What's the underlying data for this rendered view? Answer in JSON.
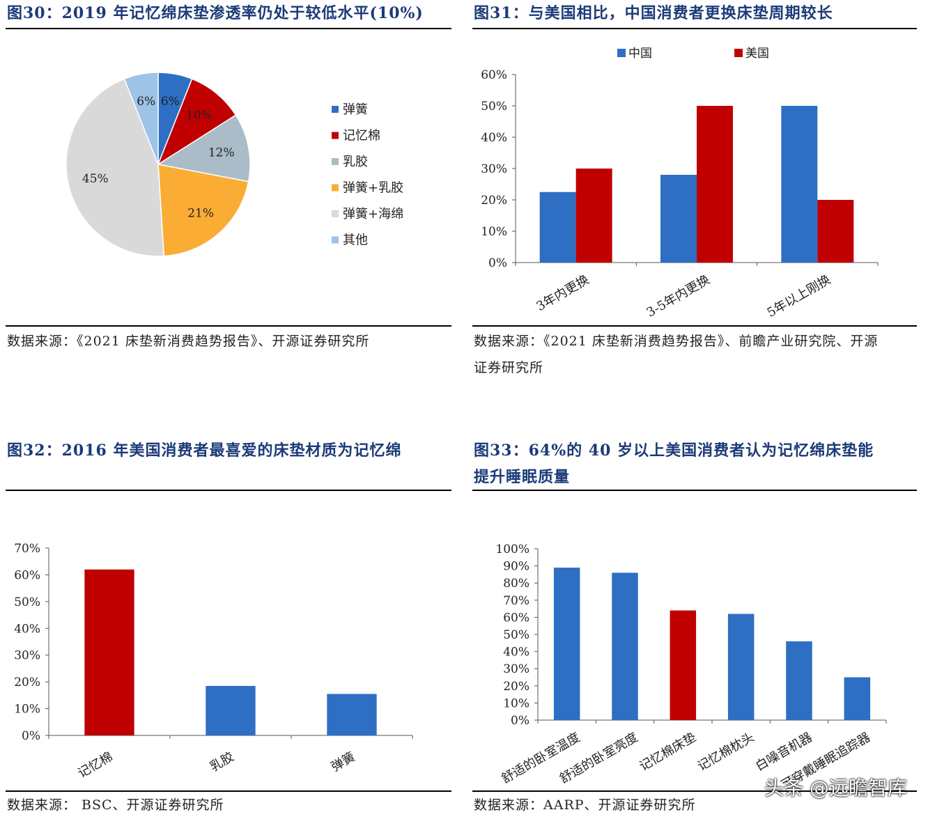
{
  "fig30": {
    "title": "图30：2019 年记忆绵床垫渗透率仍处于较低水平(10%)",
    "source": "数据来源：《2021 床垫新消费趋势报告》、开源证券研究所"
  },
  "fig31": {
    "title": "图31：与美国相比，中国消费者更换床垫周期较长",
    "source_line1": "数据来源：《2021 床垫新消费趋势报告》、前瞻产业研究院、开源",
    "source_line2": "证券研究所"
  },
  "fig32": {
    "title": "图32：2016 年美国消费者最喜爱的床垫材质为记忆绵",
    "source": "数据来源：  BSC、开源证券研究所"
  },
  "fig33": {
    "title_line1": "图33：64%的  40  岁以上美国消费者认为记忆绵床垫能",
    "title_line2": "提升睡眠质量",
    "source": "数据来源：AARP、开源证券研究所"
  },
  "watermark": "头条 @远瞻智库",
  "chart_data": [
    {
      "type": "pie",
      "labels": [
        "弹簧",
        "记忆棉",
        "乳胶",
        "弹簧+乳胶",
        "弹簧+海绵",
        "其他"
      ],
      "values": [
        6,
        10,
        12,
        21,
        45,
        6
      ],
      "data_labels": [
        "6%",
        "10%",
        "12%",
        "21%",
        "45%",
        "6%"
      ],
      "colors": [
        "#2e6fc4",
        "#c00000",
        "#a9bcc7",
        "#fbac35",
        "#d9d9d9",
        "#9dc3e6"
      ],
      "legend_position": "right"
    },
    {
      "type": "bar",
      "categories": [
        "3年内更换",
        "3-5年内更换",
        "5年以上刚换"
      ],
      "series": [
        {
          "name": "中国",
          "values": [
            22.5,
            28,
            50
          ],
          "color": "#2e6fc4"
        },
        {
          "name": "美国",
          "values": [
            30,
            50,
            20
          ],
          "color": "#c00000"
        }
      ],
      "ylim": [
        0,
        60
      ],
      "yticks": [
        "0%",
        "10%",
        "20%",
        "30%",
        "40%",
        "50%",
        "60%"
      ],
      "legend_position": "top",
      "grid": false
    },
    {
      "type": "bar",
      "categories": [
        "记忆棉",
        "乳胶",
        "弹簧"
      ],
      "values": [
        62,
        18.5,
        15.5
      ],
      "colors": [
        "#c00000",
        "#2e6fc4",
        "#2e6fc4"
      ],
      "ylim": [
        0,
        70
      ],
      "yticks": [
        "0%",
        "10%",
        "20%",
        "30%",
        "40%",
        "50%",
        "60%",
        "70%"
      ],
      "grid": false
    },
    {
      "type": "bar",
      "categories": [
        "舒适的卧室温度",
        "舒适的卧室亮度",
        "记忆棉床垫",
        "记忆棉枕头",
        "白噪音机器",
        "可穿戴睡眠追踪器"
      ],
      "values": [
        89,
        86,
        64,
        62,
        46,
        25
      ],
      "colors": [
        "#2e6fc4",
        "#2e6fc4",
        "#c00000",
        "#2e6fc4",
        "#2e6fc4",
        "#2e6fc4"
      ],
      "ylim": [
        0,
        100
      ],
      "yticks": [
        "0%",
        "10%",
        "20%",
        "30%",
        "40%",
        "50%",
        "60%",
        "70%",
        "80%",
        "90%",
        "100%"
      ],
      "grid": false
    }
  ]
}
